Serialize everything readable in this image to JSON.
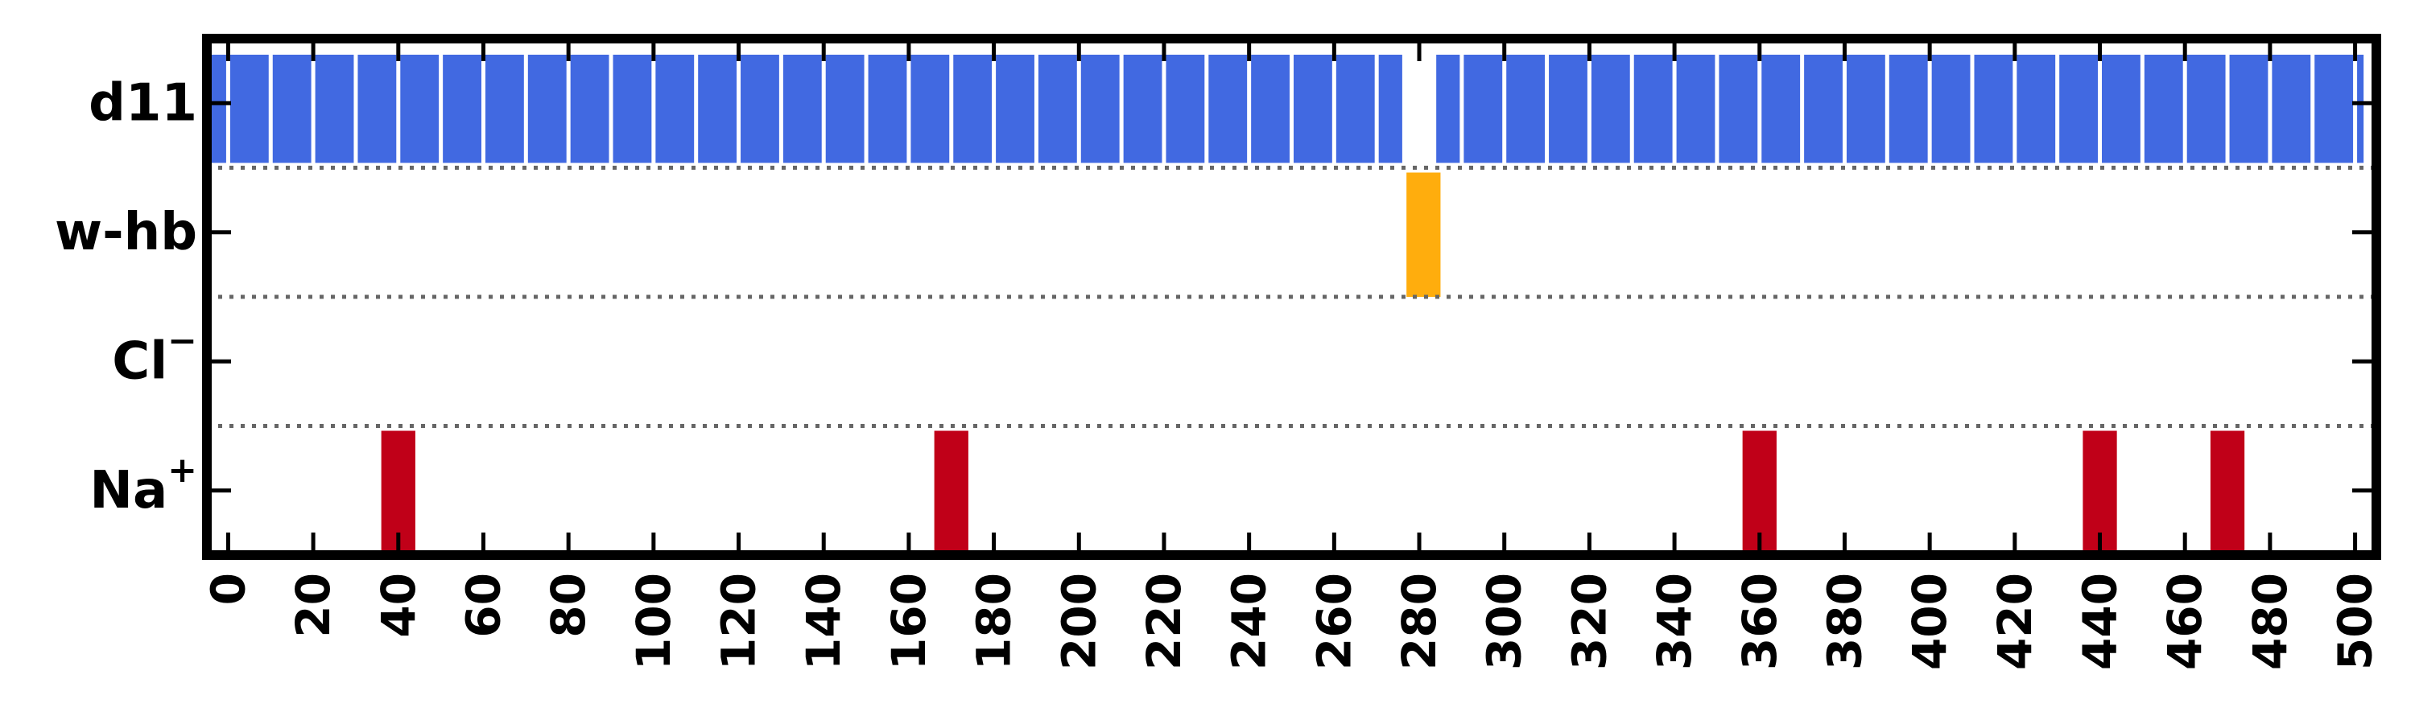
{
  "chart_data": {
    "type": "event-raster",
    "title": "",
    "xlabel": "",
    "ylabel": "",
    "xlim": [
      -5,
      505
    ],
    "xticks": [
      0,
      20,
      40,
      60,
      80,
      100,
      120,
      140,
      160,
      180,
      200,
      220,
      240,
      260,
      280,
      300,
      320,
      340,
      360,
      380,
      400,
      420,
      440,
      460,
      480,
      500
    ],
    "rows": [
      {
        "key": "d11",
        "label": "d11",
        "color": "#4169e1",
        "ranges": [
          [
            -4,
            276
          ],
          [
            284,
            502
          ]
        ],
        "stripe_every": 10,
        "sup": ""
      },
      {
        "key": "whb",
        "label": "w-hb",
        "color": "#ffad0d",
        "ranges": [
          [
            277,
            285
          ]
        ],
        "sup": ""
      },
      {
        "key": "cl",
        "label": "Cl",
        "sup": "−",
        "color": "#c00018",
        "ranges": []
      },
      {
        "key": "na",
        "label": "Na",
        "sup": "+",
        "color": "#c00018",
        "ranges": [
          [
            36,
            44
          ],
          [
            166,
            174
          ],
          [
            356,
            364
          ],
          [
            436,
            444
          ],
          [
            466,
            474
          ]
        ]
      }
    ],
    "separator_style": "dotted",
    "grid": false
  }
}
